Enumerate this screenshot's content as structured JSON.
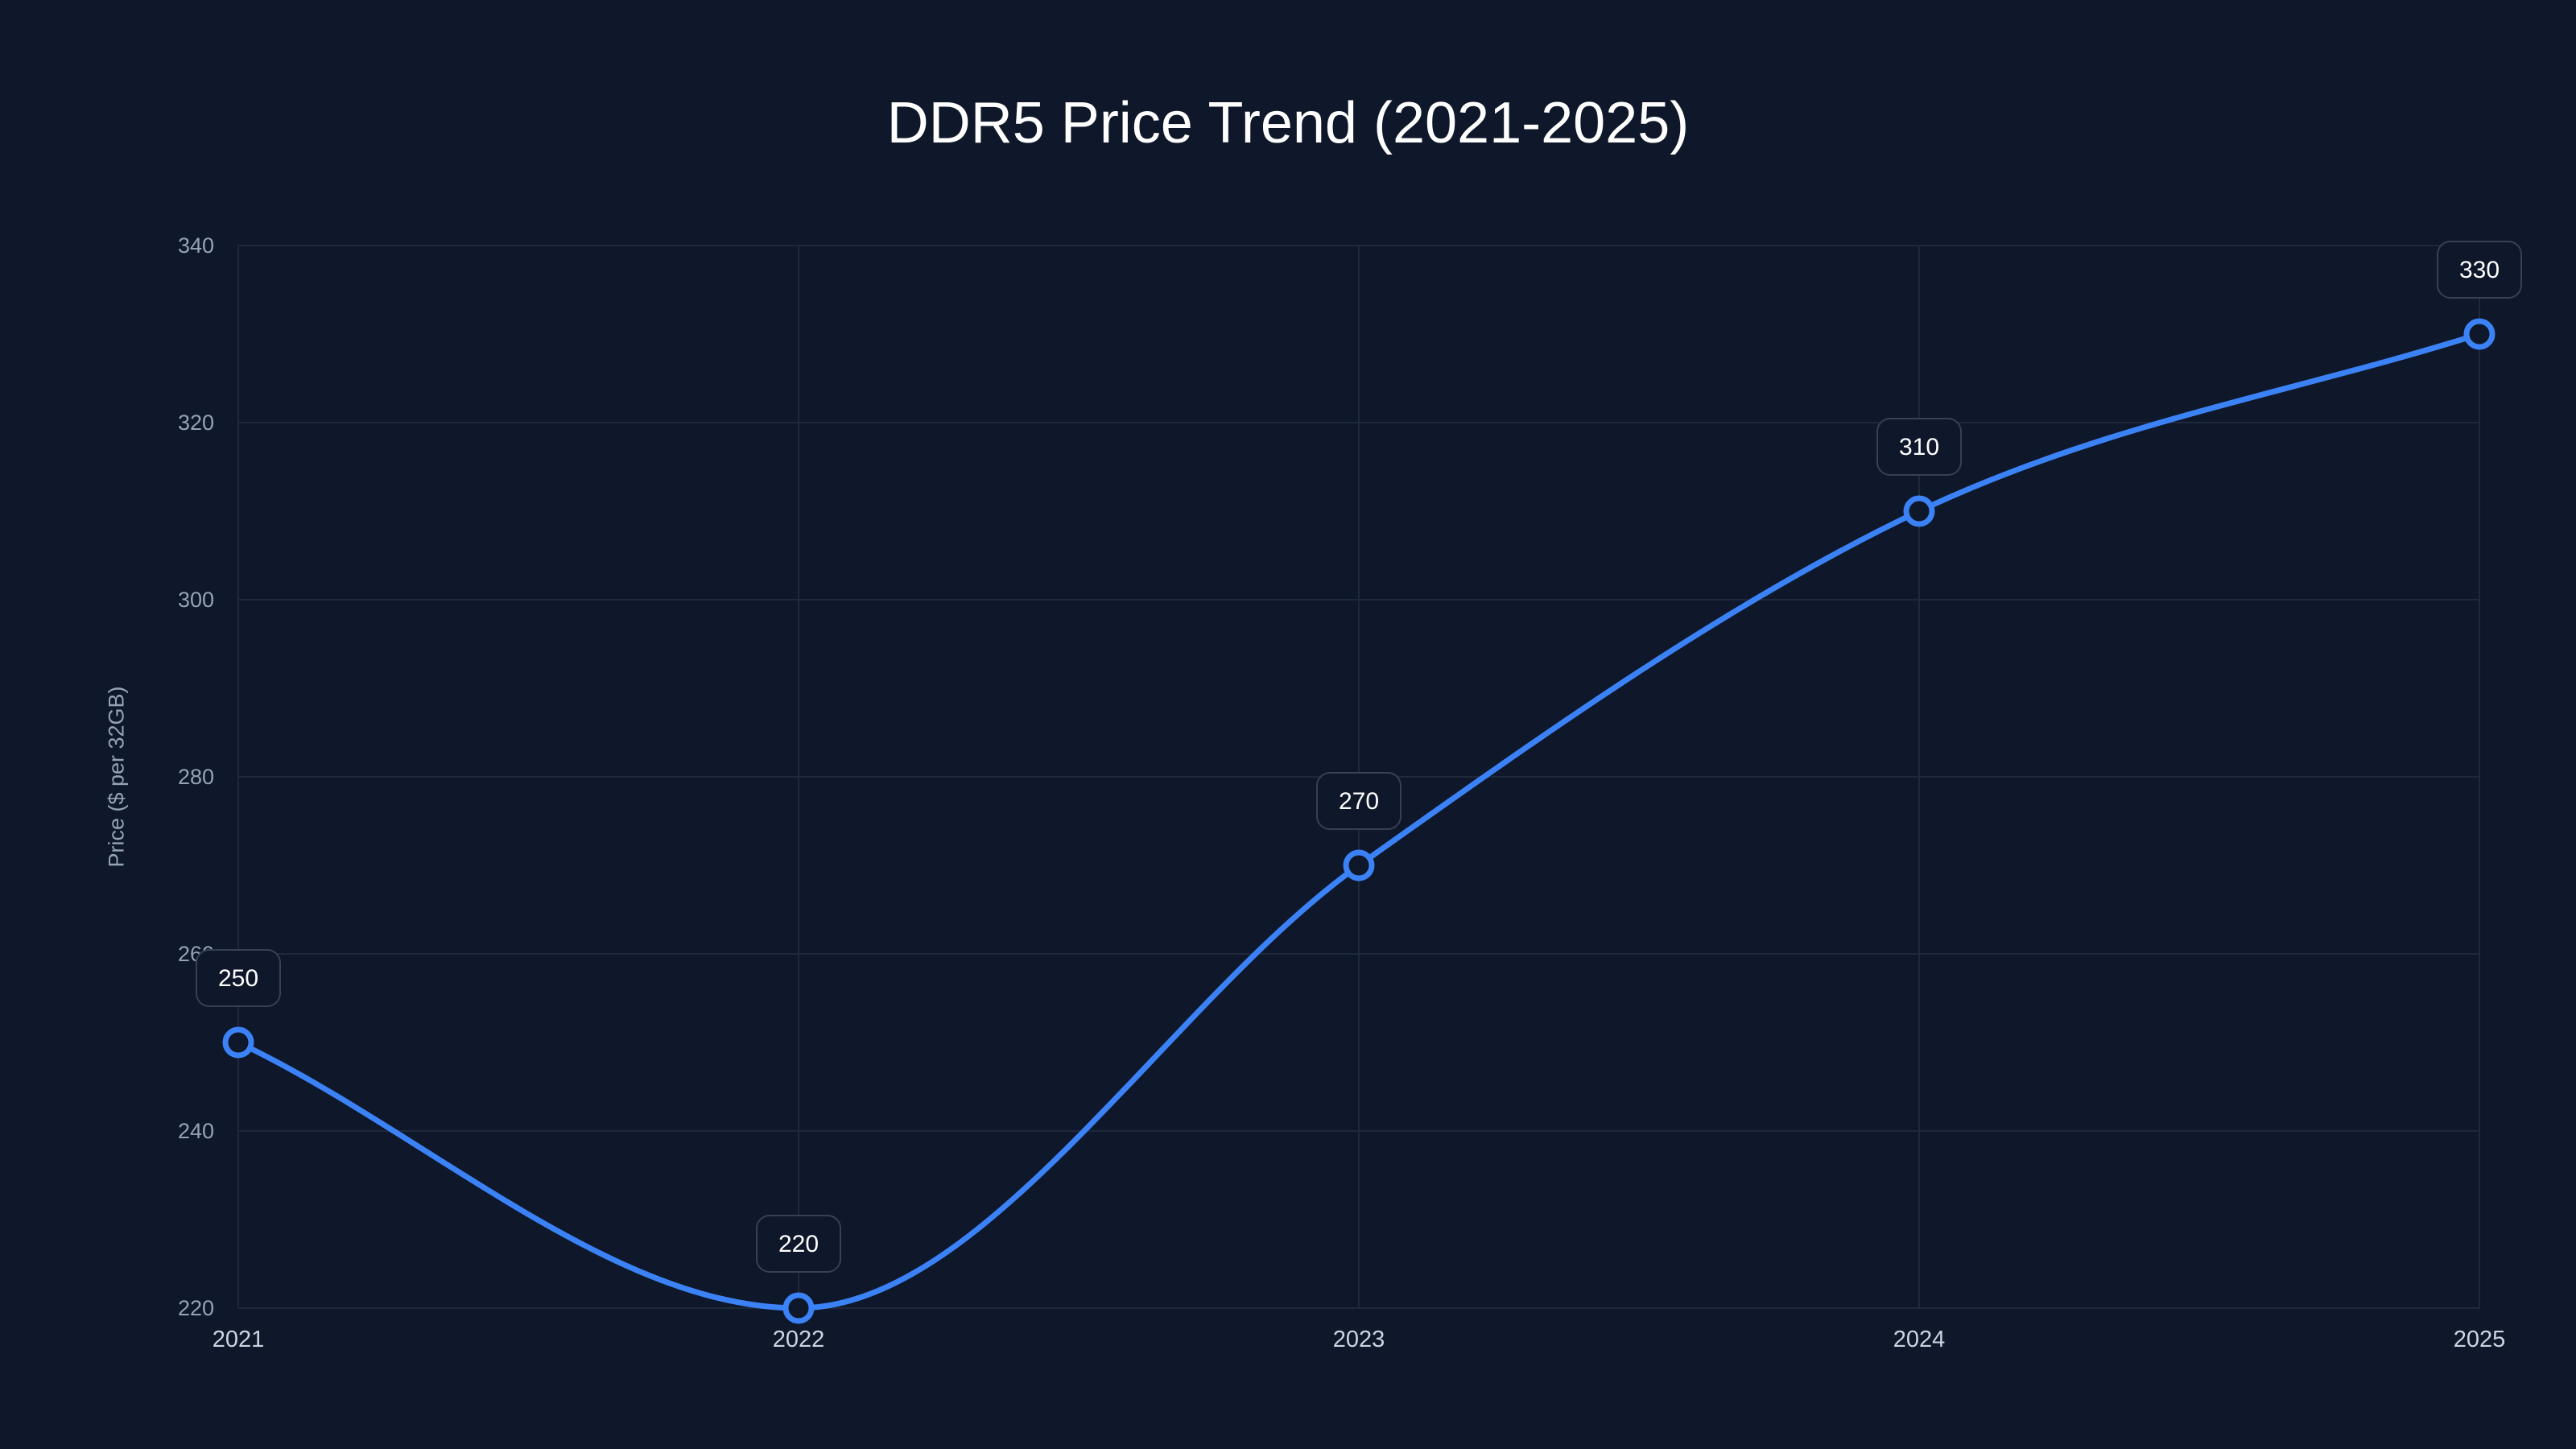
{
  "title": "DDR5 Price Trend (2021-2025)",
  "colors": {
    "background": "#0f172a",
    "line": "#3b82f6",
    "grid": "#1e293b",
    "label_border": "#374151",
    "tick_text": "#94a3b8"
  },
  "chart_data": {
    "type": "line",
    "title": "DDR5 Price Trend (2021-2025)",
    "xlabel": "",
    "ylabel": "Price ($ per 32GB)",
    "categories": [
      "2021",
      "2022",
      "2023",
      "2024",
      "2025"
    ],
    "series": [
      {
        "name": "DDR5 Price",
        "values": [
          250,
          220,
          270,
          310,
          330
        ]
      }
    ],
    "ylim": [
      220,
      340
    ],
    "yticks": [
      220,
      240,
      260,
      280,
      300,
      320,
      340
    ],
    "grid": true,
    "data_labels": true,
    "smooth": true
  }
}
